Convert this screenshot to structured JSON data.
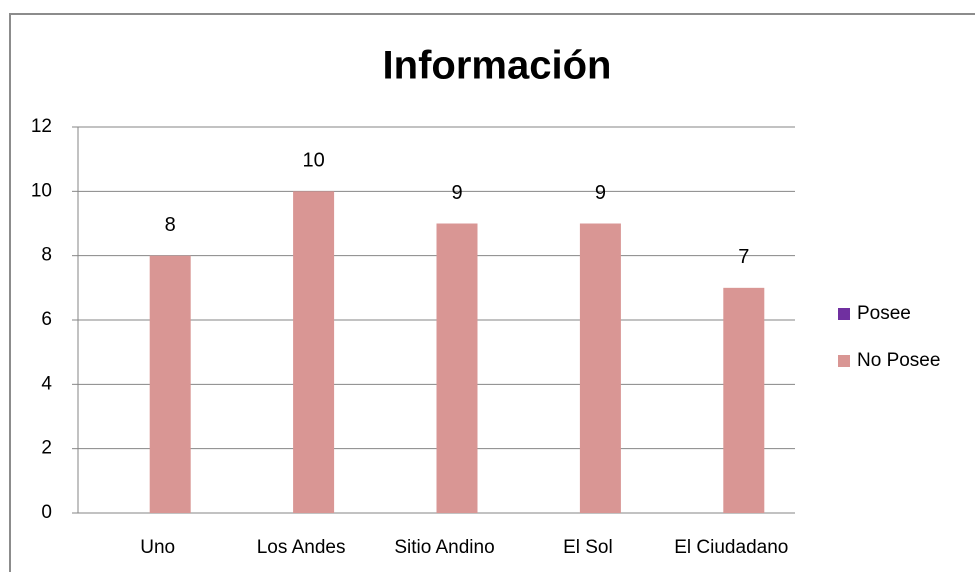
{
  "chart_data": {
    "type": "bar",
    "title": "Información",
    "categories": [
      "Uno",
      "Los Andes",
      "Sitio Andino",
      "El Sol",
      "El Ciudadano"
    ],
    "series": [
      {
        "name": "Posee",
        "color": "#7030a0",
        "values": [
          null,
          null,
          null,
          null,
          null
        ]
      },
      {
        "name": "No Posee",
        "color": "#d99694",
        "values": [
          8,
          10,
          9,
          9,
          7
        ]
      }
    ],
    "ylim": [
      0,
      12
    ],
    "yticks": [
      0,
      2,
      4,
      6,
      8,
      10,
      12
    ],
    "grid": true,
    "legend": "right"
  }
}
